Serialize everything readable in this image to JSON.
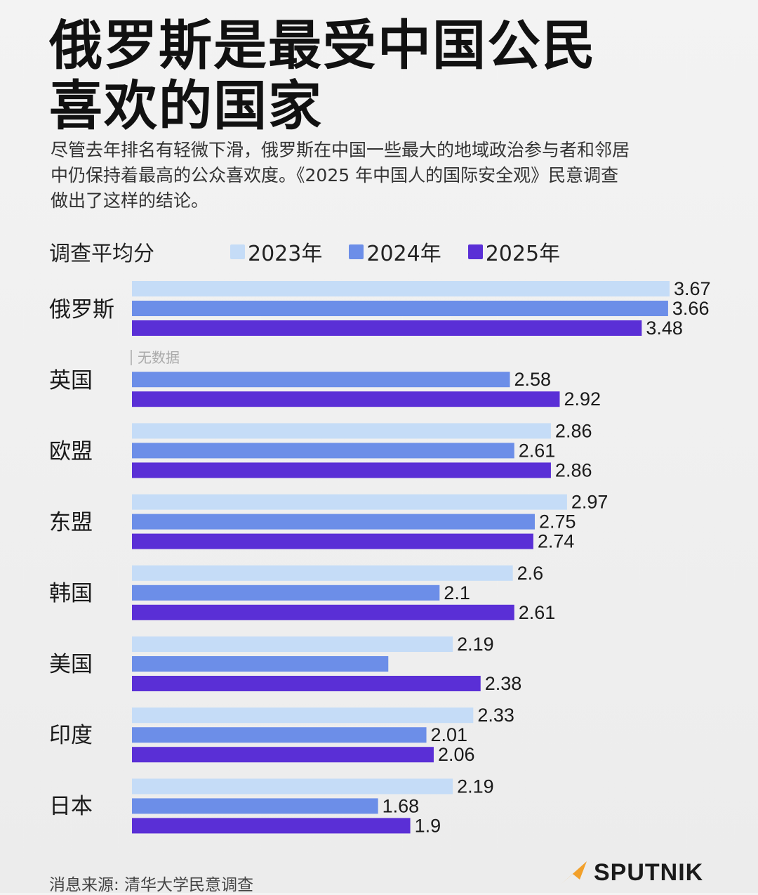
{
  "title_lines": [
    "俄罗斯是最受中国公民",
    "喜欢的国家"
  ],
  "subtitle_lines": [
    "尽管去年排名有轻微下滑，俄罗斯在中国一些最大的地域政治参与者和邻居",
    "中仍保持着最高的公众喜欢度。《2025 年中国人的国际安全观》民意调查",
    "做出了这样的结论。"
  ],
  "measure_label": "调查平均分",
  "no_data_label": "无数据",
  "source": "消息来源: 清华大学民意调查",
  "brand": "SPUTNIK",
  "colors": {
    "2023": "#c5dcf7",
    "2024": "#6c8ee8",
    "2025": "#5a2fd6",
    "logo_accent": "#f2a02a"
  },
  "chart_data": {
    "type": "bar",
    "orientation": "horizontal",
    "title": "俄罗斯是最受中国公民喜欢的国家",
    "xlabel": "调查平均分",
    "categories": [
      "俄罗斯",
      "英国",
      "欧盟",
      "东盟",
      "韩国",
      "美国",
      "印度",
      "日本"
    ],
    "series": [
      {
        "name": "2023年",
        "values": [
          3.67,
          null,
          2.86,
          2.97,
          2.6,
          2.19,
          2.33,
          2.19
        ],
        "labels": [
          "3.67",
          "",
          "2.86",
          "2.97",
          "2.6",
          "2.19",
          "2.33",
          "2.19"
        ]
      },
      {
        "name": "2024年",
        "values": [
          3.66,
          2.58,
          2.61,
          2.75,
          2.1,
          1.75,
          2.01,
          1.68
        ],
        "labels": [
          "3.66",
          "2.58",
          "2.61",
          "2.75",
          "2.1",
          "",
          "2.01",
          "1.68"
        ]
      },
      {
        "name": "2025年",
        "values": [
          3.48,
          2.92,
          2.86,
          2.74,
          2.61,
          2.38,
          2.06,
          1.9
        ],
        "labels": [
          "3.48",
          "2.92",
          "2.86",
          "2.74",
          "2.61",
          "2.38",
          "2.06",
          "1.9"
        ]
      }
    ],
    "xlim": [
      0,
      3.67
    ],
    "grid": false,
    "legend": "top"
  }
}
